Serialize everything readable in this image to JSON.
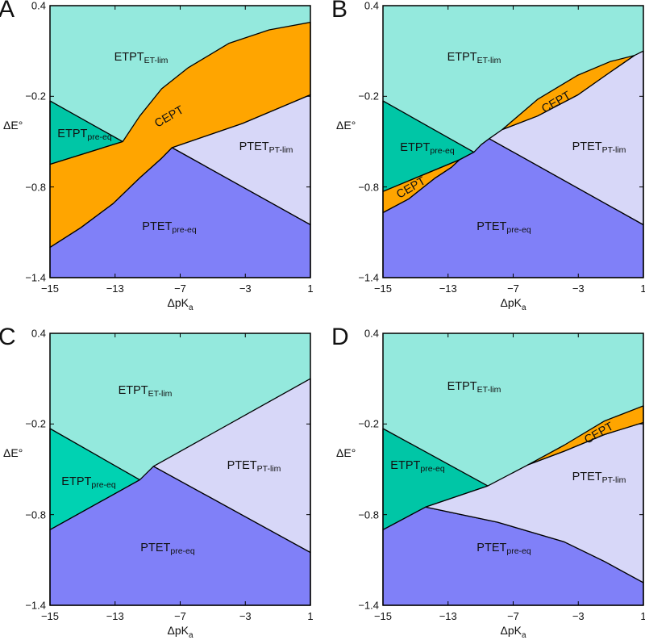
{
  "colors": {
    "etpt_et_lim": "#94e9dd",
    "etpt_pre_eq": "#00c6a6",
    "cept": "#ffa500",
    "ptet_pt_lim": "#d7d7f8",
    "ptet_pre_eq": "#8080f8"
  },
  "chart_data": [
    {
      "panel": "A",
      "type": "area",
      "xlabel": {
        "text": "ΔpK",
        "sub": "a"
      },
      "ylabel": "ΔE°",
      "xticks": [
        "−15",
        "−13",
        "−7",
        "−3",
        "1"
      ],
      "yticks": [
        "0.4",
        "−0.2",
        "−0.8",
        "−1.4"
      ],
      "xlim": [
        -15,
        1
      ],
      "ylim": [
        -1.4,
        0.4
      ],
      "background_region": {
        "label": "ETPT",
        "sub": "ET-lim",
        "color": "#94e9dd"
      },
      "regions": [
        {
          "label": "ETPT",
          "sub": "pre-eq",
          "color": "#00c6a6",
          "points": [
            [
              -15,
              -0.23
            ],
            [
              -10.53,
              -0.5
            ],
            [
              -15,
              -0.65
            ]
          ]
        },
        {
          "label": "CEPT",
          "sub": "",
          "color": "#ffa500",
          "points": [
            [
              -10.53,
              -0.5
            ],
            [
              -9.48,
              -0.33
            ],
            [
              -8.14,
              -0.15
            ],
            [
              -6.5,
              -0.01
            ],
            [
              -4.02,
              0.15
            ],
            [
              -1.53,
              0.24
            ],
            [
              1,
              0.29
            ],
            [
              1,
              -0.19
            ],
            [
              -3.17,
              -0.38
            ],
            [
              -7.5,
              -0.54
            ],
            [
              -8.14,
              -0.61
            ],
            [
              -9.48,
              -0.74
            ],
            [
              -11.12,
              -0.91
            ],
            [
              -13.11,
              -1.07
            ],
            [
              -15,
              -1.2
            ],
            [
              -15,
              -0.65
            ]
          ]
        },
        {
          "label": "PTET",
          "sub": "PT-lim",
          "color": "#d7d7f8",
          "points": [
            [
              -7.5,
              -0.54
            ],
            [
              -3.17,
              -0.38
            ],
            [
              1,
              -0.19
            ],
            [
              1,
              -1.05
            ]
          ]
        },
        {
          "label": "PTET",
          "sub": "pre-eq",
          "color": "#8080f8",
          "points": [
            [
              -15,
              -1.2
            ],
            [
              -13.11,
              -1.07
            ],
            [
              -11.12,
              -0.91
            ],
            [
              -9.48,
              -0.74
            ],
            [
              -8.14,
              -0.61
            ],
            [
              -7.5,
              -0.54
            ],
            [
              1,
              -1.05
            ],
            [
              1,
              -1.4
            ],
            [
              -15,
              -1.4
            ]
          ]
        }
      ]
    },
    {
      "panel": "B",
      "type": "area",
      "xlabel": {
        "text": "ΔpK",
        "sub": "a"
      },
      "ylabel": "ΔE°",
      "xticks": [
        "−15",
        "−13",
        "−7",
        "−3",
        "1"
      ],
      "yticks": [
        "0.4",
        "−0.2",
        "−0.8",
        "−1.4"
      ],
      "xlim": [
        -15,
        1
      ],
      "ylim": [
        -1.4,
        0.4
      ],
      "background_region": {
        "label": "ETPT",
        "sub": "ET-lim",
        "color": "#94e9dd"
      },
      "regions": [
        {
          "label": "ETPT",
          "sub": "pre-eq",
          "color": "#00c6a6",
          "points": [
            [
              -15,
              -0.23
            ],
            [
              -9.41,
              -0.57
            ],
            [
              -10.3,
              -0.62
            ],
            [
              -15,
              -0.83
            ]
          ]
        },
        {
          "label": "CEPT",
          "sub": "",
          "color": "#ffa500",
          "points": [
            [
              -15,
              -0.83
            ],
            [
              -10.3,
              -0.62
            ],
            [
              -10.79,
              -0.67
            ],
            [
              -11.78,
              -0.74
            ],
            [
              -13.42,
              -0.88
            ],
            [
              -15,
              -0.97
            ]
          ]
        },
        {
          "label": "PTET",
          "sub": "pre-eq",
          "color": "#8080f8",
          "points": [
            [
              -15,
              -0.97
            ],
            [
              -13.42,
              -0.88
            ],
            [
              -11.78,
              -0.74
            ],
            [
              -10.79,
              -0.67
            ],
            [
              -10.3,
              -0.62
            ],
            [
              -9.41,
              -0.57
            ],
            [
              -8.96,
              -0.52
            ],
            [
              -8.47,
              -0.48
            ],
            [
              1,
              -1.05
            ],
            [
              1,
              -1.4
            ],
            [
              -15,
              -1.4
            ]
          ]
        },
        {
          "label": "PTET",
          "sub": "PT-lim",
          "color": "#d7d7f8",
          "points": [
            [
              -8.47,
              -0.48
            ],
            [
              -7.67,
              -0.42
            ],
            [
              -5.5,
              -0.33
            ],
            [
              -3.02,
              -0.19
            ],
            [
              -1.04,
              -0.04
            ],
            [
              0.44,
              0.07
            ],
            [
              1,
              0.1
            ],
            [
              1,
              -1.05
            ]
          ]
        },
        {
          "label": "CEPT",
          "sub": "",
          "color": "#ffa500",
          "points": [
            [
              -7.67,
              -0.42
            ],
            [
              -5.5,
              -0.22
            ],
            [
              -3.02,
              -0.06
            ],
            [
              -1.04,
              0.03
            ],
            [
              0.44,
              0.07
            ],
            [
              -1.04,
              -0.04
            ],
            [
              -3.02,
              -0.19
            ],
            [
              -5.5,
              -0.33
            ]
          ]
        }
      ]
    },
    {
      "panel": "C",
      "type": "area",
      "xlabel": {
        "text": "ΔpK",
        "sub": "a"
      },
      "ylabel": "ΔE°",
      "xticks": [
        "−15",
        "−13",
        "−7",
        "−3",
        "1"
      ],
      "yticks": [
        "0.4",
        "−0.2",
        "−0.8",
        "−1.4"
      ],
      "xlim": [
        -15,
        1
      ],
      "ylim": [
        -1.4,
        0.4
      ],
      "background_region": {
        "label": "ETPT",
        "sub": "ET-lim",
        "color": "#94e9dd"
      },
      "regions": [
        {
          "label": "ETPT",
          "sub": "pre-eq",
          "color": "#00d2b2",
          "points": [
            [
              -15,
              -0.23
            ],
            [
              -9.48,
              -0.57
            ],
            [
              -15,
              -0.9
            ]
          ]
        },
        {
          "label": "PTET",
          "sub": "pre-eq",
          "color": "#8080f8",
          "points": [
            [
              -15,
              -0.9
            ],
            [
              -9.48,
              -0.57
            ],
            [
              -8.64,
              -0.48
            ],
            [
              1,
              -1.05
            ],
            [
              1,
              -1.4
            ],
            [
              -15,
              -1.4
            ]
          ]
        },
        {
          "label": "PTET",
          "sub": "PT-lim",
          "color": "#d7d7f8",
          "points": [
            [
              -8.64,
              -0.48
            ],
            [
              1,
              0.1
            ],
            [
              1,
              -1.05
            ]
          ]
        }
      ]
    },
    {
      "panel": "D",
      "type": "area",
      "xlabel": {
        "text": "ΔpK",
        "sub": "a"
      },
      "ylabel": "ΔE°",
      "xticks": [
        "−15",
        "−13",
        "−7",
        "−3",
        "1"
      ],
      "yticks": [
        "0.4",
        "−0.2",
        "−0.8",
        "−1.4"
      ],
      "xlim": [
        -15,
        1
      ],
      "ylim": [
        -1.4,
        0.4
      ],
      "background_region": {
        "label": "ETPT",
        "sub": "ET-lim",
        "color": "#94e9dd"
      },
      "regions": [
        {
          "label": "ETPT",
          "sub": "pre-eq",
          "color": "#00c6a6",
          "points": [
            [
              -15,
              -0.23
            ],
            [
              -8.56,
              -0.61
            ],
            [
              -12.38,
              -0.75
            ],
            [
              -15,
              -0.9
            ]
          ]
        },
        {
          "label": "PTET",
          "sub": "pre-eq",
          "color": "#8080f8",
          "points": [
            [
              -15,
              -0.9
            ],
            [
              -12.38,
              -0.75
            ],
            [
              -7.97,
              -0.85
            ],
            [
              -3.86,
              -0.98
            ],
            [
              -1.39,
              -1.11
            ],
            [
              1,
              -1.25
            ],
            [
              1,
              -1.4
            ],
            [
              -15,
              -1.4
            ]
          ]
        },
        {
          "label": "PTET",
          "sub": "PT-lim",
          "color": "#d7d7f8",
          "points": [
            [
              -12.38,
              -0.75
            ],
            [
              -8.56,
              -0.61
            ],
            [
              -6.09,
              -0.47
            ],
            [
              -3.86,
              -0.38
            ],
            [
              -1.39,
              -0.27
            ],
            [
              1,
              -0.19
            ],
            [
              1,
              -1.25
            ],
            [
              -1.39,
              -1.11
            ],
            [
              -3.86,
              -0.98
            ],
            [
              -7.97,
              -0.85
            ]
          ]
        },
        {
          "label": "CEPT",
          "sub": "",
          "color": "#ffa500",
          "points": [
            [
              -6.09,
              -0.47
            ],
            [
              -3.86,
              -0.34
            ],
            [
              -1.39,
              -0.18
            ],
            [
              1,
              -0.08
            ],
            [
              1,
              -0.19
            ],
            [
              -1.39,
              -0.27
            ],
            [
              -3.86,
              -0.38
            ]
          ]
        }
      ]
    }
  ]
}
